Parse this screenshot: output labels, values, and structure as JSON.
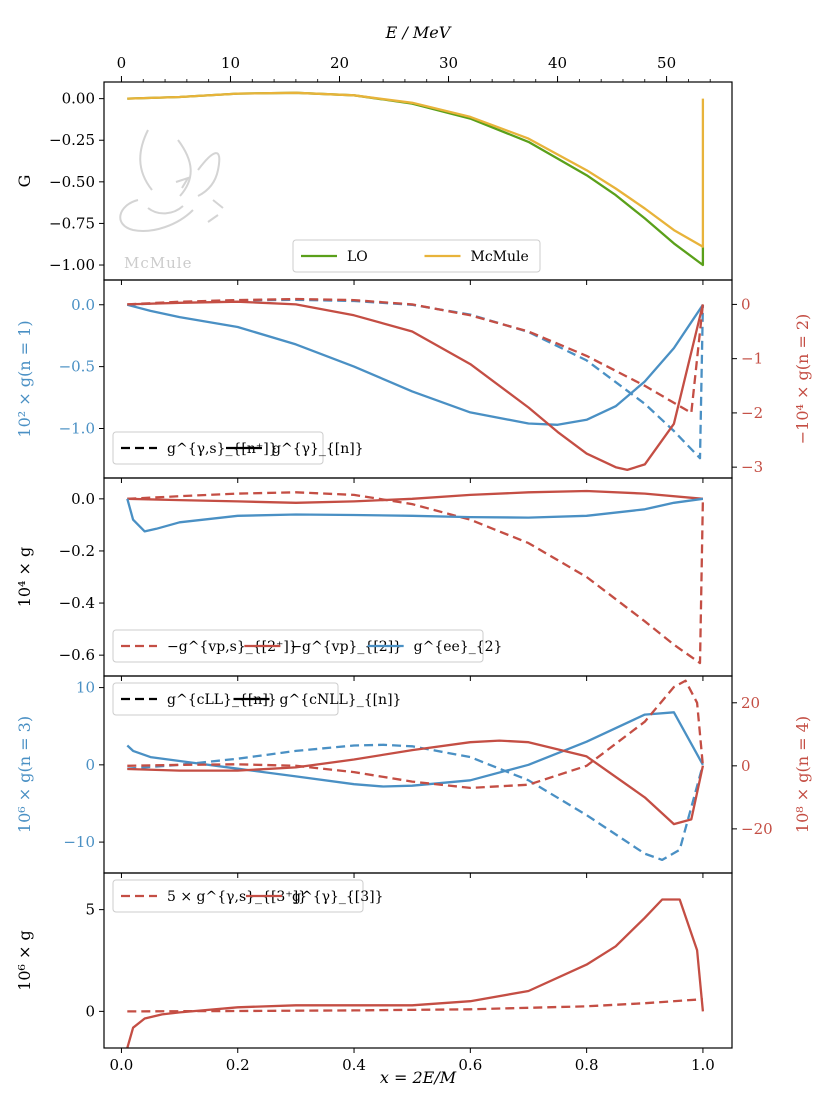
{
  "colors": {
    "green": "#5aa01a",
    "orange": "#e8b33a",
    "blue": "#4a90c4",
    "red": "#c44e44",
    "black": "#000000"
  },
  "top_axis": {
    "label": "E / MeV",
    "ticks": [
      0,
      10,
      20,
      30,
      40,
      50
    ],
    "range": [
      -1.6,
      56.0
    ]
  },
  "watermark": "McMule",
  "chart_data": [
    {
      "type": "line",
      "panel": 1,
      "ylabel_left": "G",
      "x_label": "x = 2E/M",
      "xlim": [
        -0.03,
        1.05
      ],
      "ylim": [
        -1.09,
        0.1
      ],
      "yticks_left": [
        "0.00",
        "−0.25",
        "−0.50",
        "−0.75",
        "−1.00"
      ],
      "yticks_left_vals": [
        0.0,
        -0.25,
        -0.5,
        -0.75,
        -1.0
      ],
      "legend": [
        "LO",
        "McMule"
      ],
      "series": [
        {
          "name": "LO",
          "color": "green",
          "style": "solid",
          "x": [
            0.01,
            0.1,
            0.2,
            0.3,
            0.4,
            0.5,
            0.6,
            0.7,
            0.8,
            0.85,
            0.9,
            0.95,
            1.0,
            1.0
          ],
          "y": [
            0.0,
            0.01,
            0.03,
            0.035,
            0.02,
            -0.03,
            -0.12,
            -0.26,
            -0.46,
            -0.58,
            -0.72,
            -0.87,
            -1.0,
            -0.89
          ]
        },
        {
          "name": "McMule",
          "color": "orange",
          "style": "solid",
          "x": [
            0.01,
            0.1,
            0.2,
            0.3,
            0.4,
            0.5,
            0.6,
            0.7,
            0.8,
            0.85,
            0.9,
            0.95,
            1.0,
            1.0
          ],
          "y": [
            0.0,
            0.01,
            0.03,
            0.035,
            0.02,
            -0.025,
            -0.11,
            -0.24,
            -0.43,
            -0.54,
            -0.66,
            -0.79,
            -0.89,
            0.0
          ]
        }
      ]
    },
    {
      "type": "line",
      "panel": 2,
      "ylabel_left": "10² × g(n = 1)",
      "ylabel_right": "−10⁴ × g(n = 2)",
      "ylim": [
        -1.4,
        0.2
      ],
      "yticks_left": [
        "0.0",
        "−0.5",
        "−1.0"
      ],
      "yticks_left_vals": [
        0.0,
        -0.5,
        -1.0
      ],
      "ylim_right": [
        -3.2,
        0.45
      ],
      "yticks_right": [
        "0",
        "−1",
        "−2",
        "−3"
      ],
      "yticks_right_vals": [
        0,
        -1,
        -2,
        -3
      ],
      "legend": [
        "g^{γ,s}_{[n⁺]}",
        "g^{γ}_{[n]}"
      ],
      "series": [
        {
          "name": "g^γ,s n=1",
          "color": "blue",
          "style": "dashed",
          "axis": "left",
          "x": [
            0.01,
            0.1,
            0.2,
            0.3,
            0.4,
            0.5,
            0.6,
            0.7,
            0.8,
            0.9,
            0.95,
            0.995,
            1.0
          ],
          "y": [
            0.0,
            0.02,
            0.035,
            0.04,
            0.03,
            0.0,
            -0.08,
            -0.22,
            -0.45,
            -0.8,
            -1.02,
            -1.24,
            0.0
          ]
        },
        {
          "name": "g^γ n=1",
          "color": "blue",
          "style": "solid",
          "axis": "left",
          "x": [
            0.01,
            0.05,
            0.1,
            0.2,
            0.3,
            0.4,
            0.5,
            0.6,
            0.7,
            0.75,
            0.8,
            0.85,
            0.9,
            0.95,
            1.0
          ],
          "y": [
            0.0,
            -0.05,
            -0.1,
            -0.18,
            -0.32,
            -0.5,
            -0.7,
            -0.87,
            -0.96,
            -0.97,
            -0.93,
            -0.82,
            -0.62,
            -0.35,
            0.0
          ]
        },
        {
          "name": "g^γ,s n=2",
          "color": "red",
          "style": "dashed",
          "axis": "right",
          "x": [
            0.01,
            0.1,
            0.2,
            0.3,
            0.4,
            0.5,
            0.6,
            0.7,
            0.8,
            0.9,
            0.98,
            1.0
          ],
          "y": [
            0.0,
            0.05,
            0.08,
            0.1,
            0.08,
            0.0,
            -0.2,
            -0.5,
            -0.95,
            -1.5,
            -2.0,
            0.0
          ]
        },
        {
          "name": "g^γ n=2",
          "color": "red",
          "style": "solid",
          "axis": "right",
          "x": [
            0.01,
            0.1,
            0.2,
            0.3,
            0.4,
            0.5,
            0.6,
            0.7,
            0.75,
            0.8,
            0.85,
            0.87,
            0.9,
            0.95,
            1.0
          ],
          "y": [
            0.0,
            0.03,
            0.05,
            0.0,
            -0.2,
            -0.5,
            -1.1,
            -1.9,
            -2.35,
            -2.75,
            -3.0,
            -3.05,
            -2.95,
            -2.2,
            0.0
          ]
        }
      ]
    },
    {
      "type": "line",
      "panel": 3,
      "ylabel_left": "10⁴ × g",
      "ylim": [
        -0.68,
        0.08
      ],
      "yticks_left": [
        "0.0",
        "−0.2",
        "−0.4",
        "−0.6"
      ],
      "yticks_left_vals": [
        0.0,
        -0.2,
        -0.4,
        -0.6
      ],
      "legend": [
        "−g^{vp,s}_{[2⁺]}",
        "−g^{vp}_{[2]}",
        "g^{ee}_{2}"
      ],
      "series": [
        {
          "name": "-g vp,s 2+",
          "color": "red",
          "style": "dashed",
          "x": [
            0.01,
            0.1,
            0.2,
            0.3,
            0.4,
            0.5,
            0.6,
            0.7,
            0.8,
            0.9,
            0.95,
            0.995,
            1.0
          ],
          "y": [
            0.0,
            0.01,
            0.02,
            0.025,
            0.015,
            -0.02,
            -0.08,
            -0.17,
            -0.3,
            -0.47,
            -0.56,
            -0.63,
            0.0
          ]
        },
        {
          "name": "-g vp 2",
          "color": "red",
          "style": "solid",
          "x": [
            0.01,
            0.1,
            0.2,
            0.3,
            0.4,
            0.5,
            0.6,
            0.7,
            0.8,
            0.9,
            1.0
          ],
          "y": [
            0.0,
            -0.005,
            -0.01,
            -0.015,
            -0.01,
            0.0,
            0.015,
            0.025,
            0.03,
            0.02,
            0.0
          ]
        },
        {
          "name": "g ee 2",
          "color": "blue",
          "style": "solid",
          "x": [
            0.01,
            0.02,
            0.04,
            0.06,
            0.1,
            0.2,
            0.3,
            0.4,
            0.5,
            0.6,
            0.7,
            0.8,
            0.9,
            0.95,
            1.0
          ],
          "y": [
            0.0,
            -0.08,
            -0.125,
            -0.115,
            -0.09,
            -0.065,
            -0.06,
            -0.062,
            -0.065,
            -0.07,
            -0.072,
            -0.065,
            -0.04,
            -0.015,
            0.0
          ]
        }
      ]
    },
    {
      "type": "line",
      "panel": 4,
      "ylabel_left": "10⁶ × g(n = 3)",
      "ylabel_right": "10⁸ × g(n = 4)",
      "ylim": [
        -14,
        11.5
      ],
      "yticks_left": [
        "10",
        "0",
        "−10"
      ],
      "yticks_left_vals": [
        10,
        0,
        -10
      ],
      "ylim_right": [
        -34,
        28.5
      ],
      "yticks_right": [
        "20",
        "0",
        "−20"
      ],
      "yticks_right_vals": [
        20,
        0,
        -20
      ],
      "legend": [
        "g^{cLL}_{[n]}",
        "g^{cNLL}_{[n]}"
      ],
      "series": [
        {
          "name": "cLL n=3",
          "color": "blue",
          "style": "dashed",
          "axis": "left",
          "x": [
            0.01,
            0.1,
            0.2,
            0.3,
            0.4,
            0.45,
            0.5,
            0.6,
            0.7,
            0.8,
            0.9,
            0.93,
            0.96,
            1.0
          ],
          "y": [
            -0.5,
            0.0,
            0.8,
            1.8,
            2.5,
            2.6,
            2.4,
            1.0,
            -2.0,
            -6.5,
            -11.5,
            -12.3,
            -11.0,
            0.0
          ]
        },
        {
          "name": "cNLL n=3",
          "color": "blue",
          "style": "solid",
          "axis": "left",
          "x": [
            0.01,
            0.02,
            0.05,
            0.1,
            0.2,
            0.3,
            0.4,
            0.45,
            0.5,
            0.6,
            0.7,
            0.8,
            0.9,
            0.95,
            1.0
          ],
          "y": [
            2.5,
            1.8,
            1.0,
            0.5,
            -0.5,
            -1.5,
            -2.5,
            -2.8,
            -2.7,
            -2.0,
            0.0,
            3.0,
            6.5,
            6.8,
            0.0
          ]
        },
        {
          "name": "cLL n=4",
          "color": "red",
          "style": "dashed",
          "axis": "right",
          "x": [
            0.01,
            0.1,
            0.2,
            0.3,
            0.4,
            0.5,
            0.6,
            0.7,
            0.8,
            0.9,
            0.95,
            0.97,
            0.99,
            1.0
          ],
          "y": [
            0.0,
            0.3,
            0.5,
            0.0,
            -2.0,
            -5.0,
            -7.0,
            -6.0,
            0.0,
            14.0,
            25.0,
            27.0,
            20.0,
            0.0
          ]
        },
        {
          "name": "cNLL n=4",
          "color": "red",
          "style": "solid",
          "axis": "right",
          "x": [
            0.01,
            0.1,
            0.2,
            0.3,
            0.4,
            0.5,
            0.6,
            0.65,
            0.7,
            0.8,
            0.9,
            0.95,
            0.98,
            1.0
          ],
          "y": [
            -1.0,
            -1.5,
            -1.5,
            -0.5,
            2.0,
            5.0,
            7.5,
            8.0,
            7.5,
            3.0,
            -10.0,
            -18.5,
            -17.0,
            0.0
          ]
        }
      ]
    },
    {
      "type": "line",
      "panel": 5,
      "ylabel_left": "10⁶ × g",
      "ylim": [
        -1.8,
        6.8
      ],
      "yticks_left": [
        "5",
        "0"
      ],
      "yticks_left_vals": [
        5,
        0
      ],
      "legend": [
        "5 × g^{γ,s}_{[3⁺]}",
        "g^{γ}_{[3]}"
      ],
      "xticks": [
        "0.0",
        "0.2",
        "0.4",
        "0.6",
        "0.8",
        "1.0"
      ],
      "xticks_vals": [
        0.0,
        0.2,
        0.4,
        0.6,
        0.8,
        1.0
      ],
      "series": [
        {
          "name": "5 g γ,s 3+",
          "color": "red",
          "style": "dashed",
          "x": [
            0.01,
            0.2,
            0.4,
            0.6,
            0.8,
            0.9,
            1.0
          ],
          "y": [
            0.0,
            0.02,
            0.05,
            0.1,
            0.25,
            0.4,
            0.6
          ]
        },
        {
          "name": "g γ 3",
          "color": "red",
          "style": "solid",
          "x": [
            0.01,
            0.02,
            0.04,
            0.07,
            0.1,
            0.2,
            0.3,
            0.4,
            0.5,
            0.6,
            0.7,
            0.8,
            0.85,
            0.9,
            0.93,
            0.96,
            0.99,
            1.0
          ],
          "y": [
            -1.8,
            -0.8,
            -0.35,
            -0.15,
            -0.05,
            0.2,
            0.3,
            0.3,
            0.3,
            0.5,
            1.0,
            2.3,
            3.2,
            4.6,
            5.5,
            5.5,
            3.0,
            0.0
          ]
        }
      ]
    }
  ]
}
